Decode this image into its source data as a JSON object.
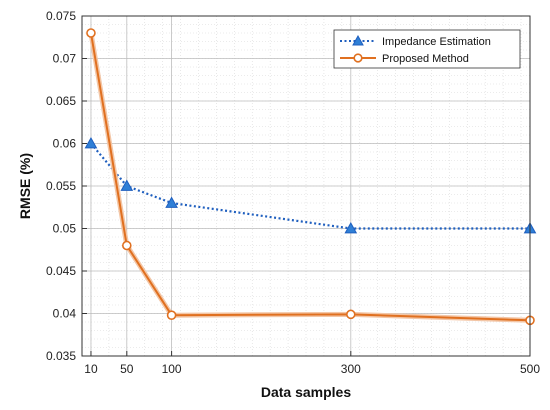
{
  "chart_data": {
    "type": "line",
    "xlabel": "Data samples",
    "ylabel": "RMSE (%)",
    "x": [
      10,
      50,
      100,
      300,
      500
    ],
    "xticks": [
      10,
      50,
      100,
      300,
      500
    ],
    "xtick_labels": [
      "10",
      "50",
      "100",
      "300",
      "500"
    ],
    "xlim": [
      0,
      500
    ],
    "ylim": [
      0.035,
      0.075
    ],
    "yticks": [
      0.035,
      0.04,
      0.045,
      0.05,
      0.055,
      0.06,
      0.065,
      0.07,
      0.075
    ],
    "ytick_labels": [
      "0.035",
      "0.04",
      "0.045",
      "0.05",
      "0.055",
      "0.06",
      "0.065",
      "0.07",
      "0.075"
    ],
    "grid": true,
    "legend_position": "top-right",
    "series": [
      {
        "name": "Impedance Estimation",
        "values": [
          0.06,
          0.055,
          0.053,
          0.05,
          0.05
        ],
        "color": "#1f5fbf",
        "marker_fill": "#2f7fd6",
        "line_style": "dotted",
        "marker": "triangle"
      },
      {
        "name": "Proposed Method",
        "values": [
          0.073,
          0.048,
          0.0398,
          0.0399,
          0.0392
        ],
        "color": "#e07020",
        "marker_fill": "#ffffff",
        "line_style": "solid",
        "marker": "circle"
      }
    ]
  }
}
